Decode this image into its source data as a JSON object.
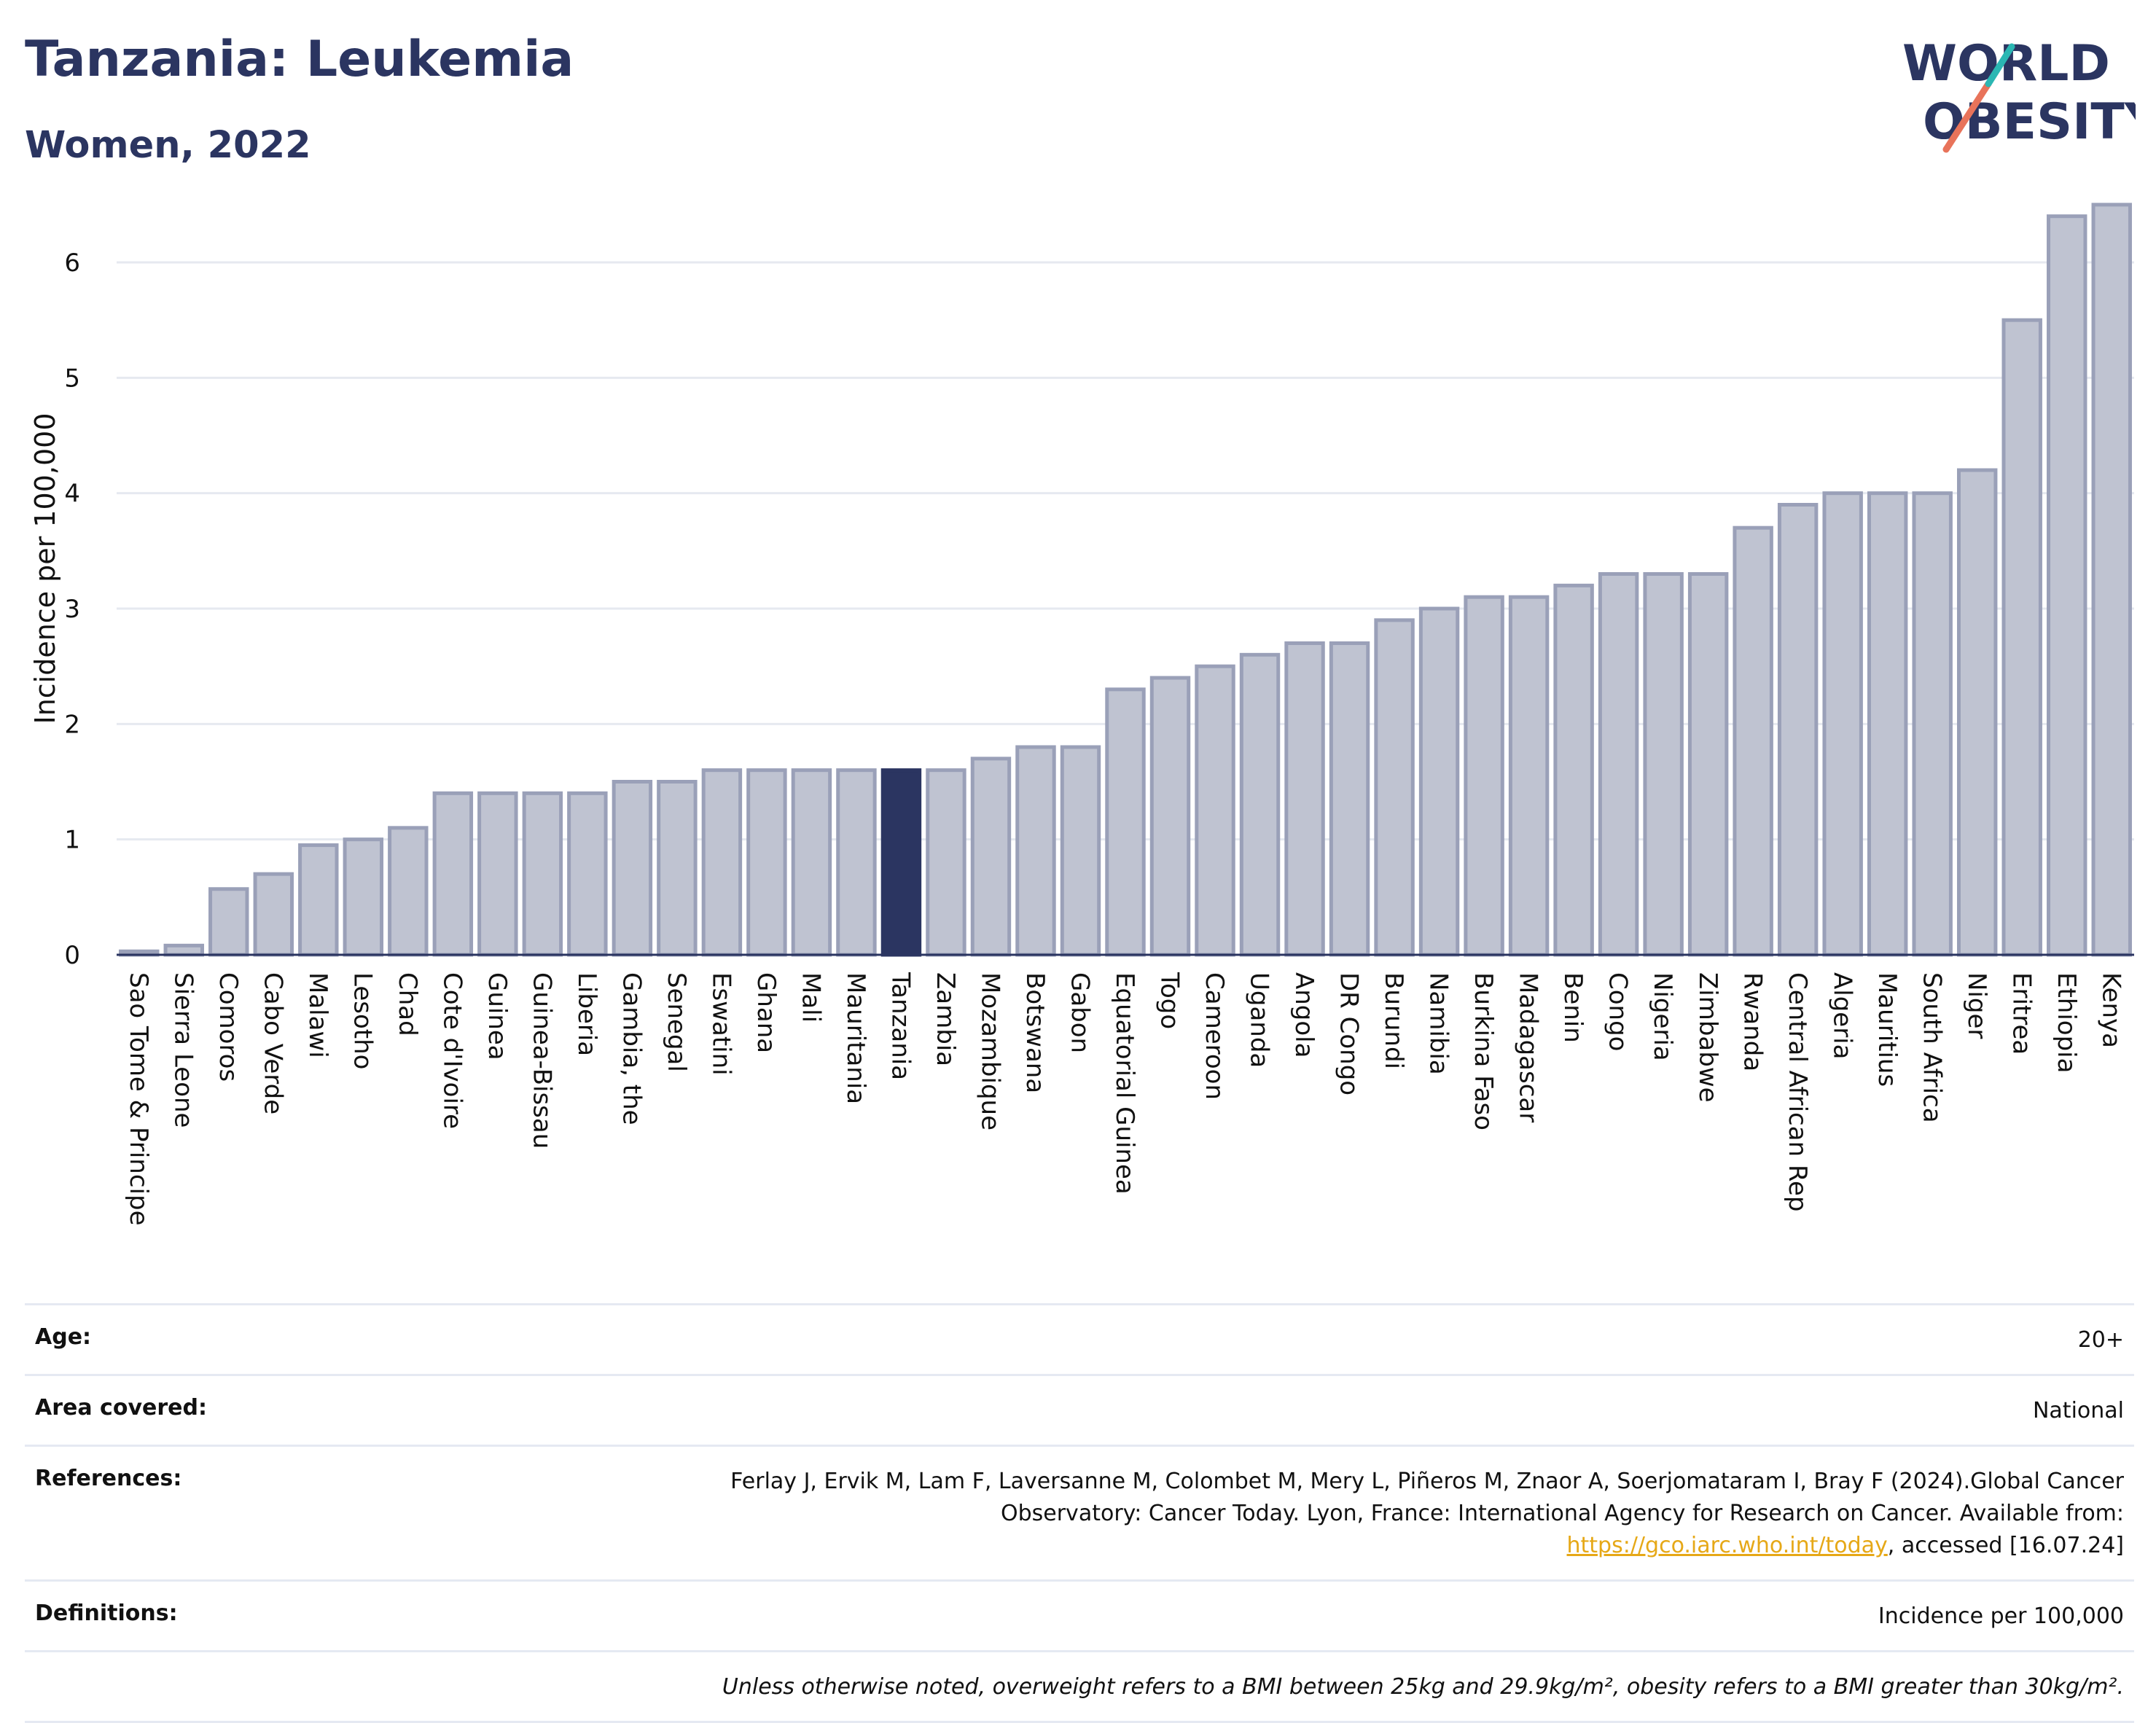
{
  "header": {
    "title": "Tanzania: Leukemia",
    "subtitle": "Women, 2022",
    "logo_line1": "WORLD",
    "logo_line2": "OBESITY"
  },
  "chart_data": {
    "type": "bar",
    "ylabel": "Incidence per 100,000",
    "ylim": [
      0,
      6.6
    ],
    "yticks": [
      0,
      1,
      2,
      3,
      4,
      5,
      6
    ],
    "grid": true,
    "highlight": "Tanzania",
    "categories": [
      "Sao Tome & Principe",
      "Sierra Leone",
      "Comoros",
      "Cabo Verde",
      "Malawi",
      "Lesotho",
      "Chad",
      "Cote d'Ivoire",
      "Guinea",
      "Guinea-Bissau",
      "Liberia",
      "Gambia, the",
      "Senegal",
      "Eswatini",
      "Ghana",
      "Mali",
      "Mauritania",
      "Tanzania",
      "Zambia",
      "Mozambique",
      "Botswana",
      "Gabon",
      "Equatorial Guinea",
      "Togo",
      "Cameroon",
      "Uganda",
      "Angola",
      "DR Congo",
      "Burundi",
      "Namibia",
      "Burkina Faso",
      "Madagascar",
      "Benin",
      "Congo",
      "Nigeria",
      "Zimbabwe",
      "Rwanda",
      "Central African Rep",
      "Algeria",
      "Mauritius",
      "South Africa",
      "Niger",
      "Eritrea",
      "Ethiopia",
      "Kenya"
    ],
    "values": [
      0.03,
      0.08,
      0.57,
      0.7,
      0.95,
      1.0,
      1.1,
      1.4,
      1.4,
      1.4,
      1.4,
      1.5,
      1.5,
      1.6,
      1.6,
      1.6,
      1.6,
      1.6,
      1.6,
      1.7,
      1.8,
      1.8,
      2.3,
      2.4,
      2.5,
      2.6,
      2.7,
      2.7,
      2.9,
      3.0,
      3.1,
      3.1,
      3.2,
      3.3,
      3.3,
      3.3,
      3.7,
      3.9,
      4.0,
      4.0,
      4.0,
      4.2,
      5.5,
      6.4,
      6.5
    ]
  },
  "colors": {
    "bar": "#bfc3d1",
    "bar_border": "#9aa0b8",
    "highlight": "#2b3561",
    "grid": "#e6e9f0",
    "axis": "#2b3561"
  },
  "info": {
    "age_label": "Age:",
    "age_value": "20+",
    "area_label": "Area covered:",
    "area_value": "National",
    "refs_label": "References:",
    "refs_text1": "Ferlay J, Ervik M, Lam F, Laversanne M, Colombet M, Mery L, Piñeros M, Znaor A, Soerjomataram I, Bray F (2024).Global Cancer Observatory: Cancer Today. Lyon, France: International Agency for Research on Cancer. Available from: ",
    "refs_link": "https://gco.iarc.who.int/today",
    "refs_text2": ", accessed [16.07.24]",
    "defs_label": "Definitions:",
    "defs_value": "Incidence per 100,000",
    "note": "Unless otherwise noted, overweight refers to a BMI between 25kg and 29.9kg/m², obesity refers to a BMI greater than 30kg/m²."
  }
}
